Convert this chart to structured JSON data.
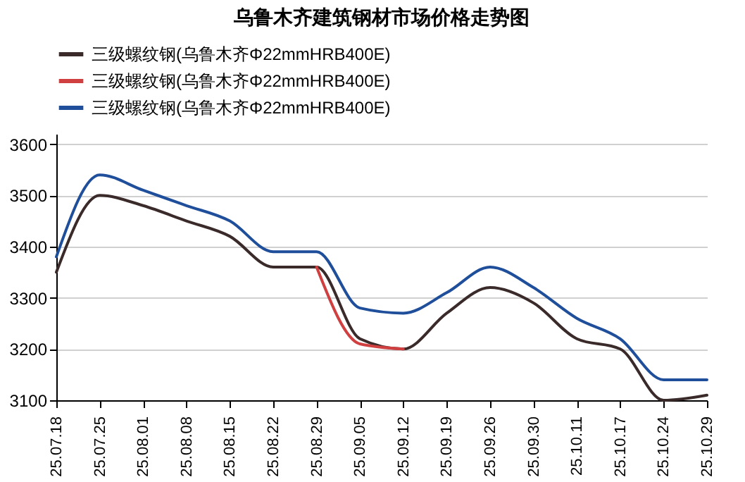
{
  "chart_data": {
    "type": "line",
    "title": "乌鲁木齐建筑钢材市场价格走势图",
    "categories": [
      "25.07.18",
      "25.07.25",
      "25.08.01",
      "25.08.08",
      "25.08.15",
      "25.08.22",
      "25.08.29",
      "25.09.05",
      "25.09.12",
      "25.09.19",
      "25.09.26",
      "25.09.30",
      "25.10.11",
      "25.10.17",
      "25.10.24",
      "25.10.29"
    ],
    "series": [
      {
        "name": "三级螺纹钢(乌鲁木齐Φ22mmHRB400E)",
        "color": "#3a2a2a",
        "values": [
          3350,
          3500,
          3480,
          3450,
          3420,
          3360,
          3360,
          3220,
          3200,
          3270,
          3320,
          3290,
          3220,
          3200,
          3100,
          3110
        ]
      },
      {
        "name": "三级螺纹钢(乌鲁木齐Φ22mmHRB400E)",
        "color": "#d04040",
        "values": [
          null,
          null,
          null,
          null,
          null,
          null,
          3360,
          3210,
          3200,
          null,
          null,
          null,
          null,
          null,
          null,
          null
        ]
      },
      {
        "name": "三级螺纹钢(乌鲁木齐Φ22mmHRB400E)",
        "color": "#1f4e9a",
        "values": [
          3380,
          3540,
          3510,
          3480,
          3450,
          3390,
          3390,
          3280,
          3270,
          3310,
          3360,
          3320,
          3260,
          3220,
          3140,
          3140
        ]
      }
    ],
    "ylim": [
      3100,
      3620
    ],
    "yticks": [
      3100,
      3200,
      3300,
      3400,
      3500,
      3600
    ],
    "grid": "y",
    "legend": "top",
    "marker": "none",
    "line_style": "solid"
  }
}
